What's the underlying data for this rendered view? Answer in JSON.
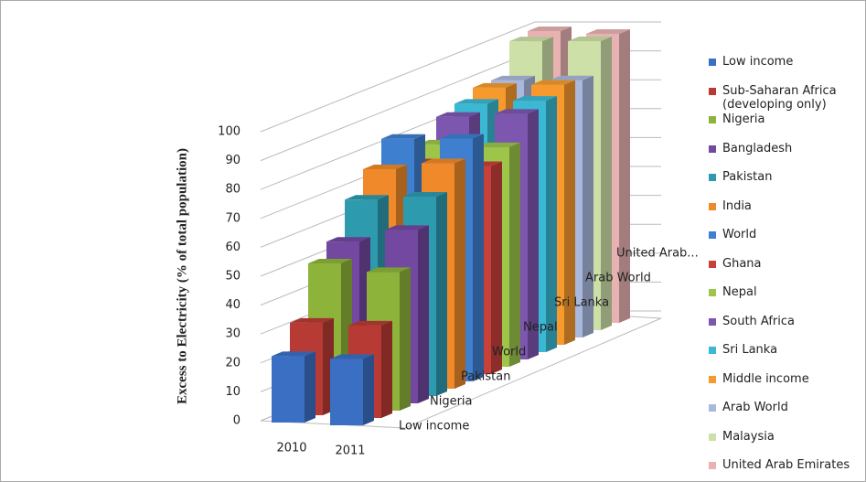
{
  "chart_data": {
    "type": "bar3d",
    "y_axis_label": "Excess to Electricity (% of total population)",
    "categories": [
      "2010",
      "2011"
    ],
    "depth_labels": [
      "Low income",
      "Nigeria",
      "Pakistan",
      "World",
      "Nepal",
      "Sri Lanka",
      "Arab World",
      "United Arab..."
    ],
    "ylim": [
      0,
      100
    ],
    "yticks": [
      0,
      10,
      20,
      30,
      40,
      50,
      60,
      70,
      80,
      90,
      100
    ],
    "grid": true,
    "series": [
      {
        "name": "Low income",
        "color": "#3a6fc4",
        "values": [
          23,
          23
        ]
      },
      {
        "name": "Sub-Saharan Africa (developing only)",
        "color": "#b83a34",
        "values": [
          32,
          32
        ]
      },
      {
        "name": "Nigeria",
        "color": "#8db33a",
        "values": [
          50,
          48
        ]
      },
      {
        "name": "Bangladesh",
        "color": "#7248a0",
        "values": [
          55,
          60
        ]
      },
      {
        "name": "Pakistan",
        "color": "#2e9aae",
        "values": [
          67,
          69
        ]
      },
      {
        "name": "India",
        "color": "#f0892a",
        "values": [
          75,
          78
        ]
      },
      {
        "name": "World",
        "color": "#3f7fd0",
        "values": [
          83,
          84
        ]
      },
      {
        "name": "Ghana",
        "color": "#c8403a",
        "values": [
          72,
          72
        ]
      },
      {
        "name": "Nepal",
        "color": "#9dc54a",
        "values": [
          76,
          76
        ]
      },
      {
        "name": "South Africa",
        "color": "#7d56b0",
        "values": [
          83,
          85
        ]
      },
      {
        "name": "Sri Lanka",
        "color": "#3ab8d4",
        "values": [
          85,
          87
        ]
      },
      {
        "name": "Middle income",
        "color": "#f79a2e",
        "values": [
          88,
          90
        ]
      },
      {
        "name": "Arab World",
        "color": "#a9b8dd",
        "values": [
          88,
          89
        ]
      },
      {
        "name": "Malaysia",
        "color": "#cde0a8",
        "values": [
          99,
          100
        ]
      },
      {
        "name": "United Arab Emirates",
        "color": "#e9b2b2",
        "values": [
          100,
          100
        ]
      }
    ]
  }
}
